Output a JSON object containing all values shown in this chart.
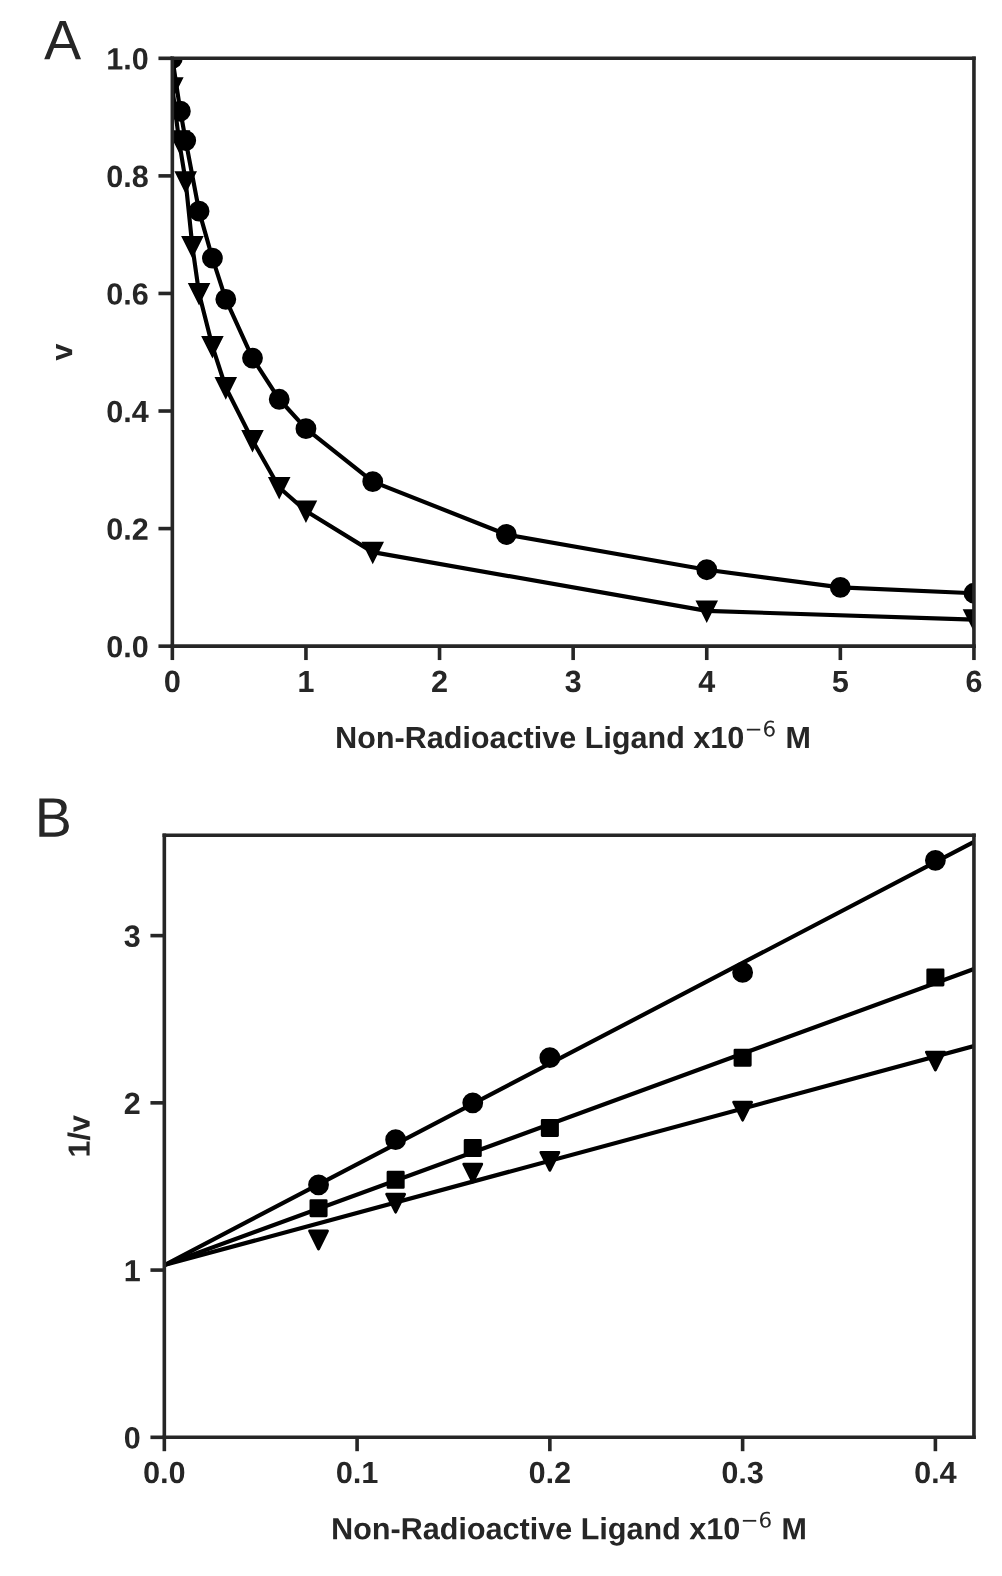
{
  "chart_data": [
    {
      "type": "line",
      "title": "A",
      "xlabel": "Non-Radioactive Ligand x10$^{−6}$ M",
      "ylabel": "v",
      "xlim": [
        0,
        6
      ],
      "xticks": [
        0,
        1,
        2,
        3,
        4,
        5,
        6
      ],
      "ylim": [
        0,
        1.0
      ],
      "yticks": [
        {
          "value": 0,
          "label": "0.0"
        },
        {
          "value": 0.2,
          "label": "0.2"
        },
        {
          "value": 0.4,
          "label": "0.4"
        },
        {
          "value": 0.6,
          "label": "0.6"
        },
        {
          "value": 0.8,
          "label": "0.8"
        },
        {
          "value": 1.0,
          "label": "1.0"
        }
      ],
      "grid": false,
      "legend": false,
      "series": [
        {
          "color": "#000000",
          "marker": "circle",
          "x": [
            0,
            0.06,
            0.1,
            0.2,
            0.3,
            0.4,
            0.6,
            0.8,
            1.0,
            1.5,
            2.5,
            4,
            5,
            6
          ],
          "values": [
            1.0,
            0.91,
            0.86,
            0.74,
            0.66,
            0.59,
            0.49,
            0.42,
            0.37,
            0.28,
            0.19,
            0.13,
            0.1,
            0.09
          ]
        },
        {
          "color": "#000000",
          "marker": "triangle",
          "x": [
            0,
            0.05,
            0.1,
            0.15,
            0.2,
            0.3,
            0.4,
            0.6,
            0.8,
            1.0,
            1.5,
            4,
            6
          ],
          "values": [
            0.95,
            0.86,
            0.79,
            0.68,
            0.6,
            0.51,
            0.44,
            0.35,
            0.27,
            0.23,
            0.16,
            0.06,
            0.045
          ]
        }
      ]
    },
    {
      "type": "scatter",
      "title": "B",
      "xlabel": "Non-Radioactive Ligand x10$^{−6}$ M",
      "ylabel": "1/v",
      "xlim": [
        0,
        0.42
      ],
      "xticks": [
        {
          "value": 0,
          "label": "0.0"
        },
        {
          "value": 0.1,
          "label": "0.1"
        },
        {
          "value": 0.2,
          "label": "0.2"
        },
        {
          "value": 0.3,
          "label": "0.3"
        },
        {
          "value": 0.4,
          "label": "0.4"
        }
      ],
      "ylim": [
        0,
        3.6
      ],
      "yticks": [
        0,
        1,
        2,
        3
      ],
      "grid": false,
      "legend": false,
      "series": [
        {
          "color": "#000000",
          "marker": "circle",
          "x": [
            0.08,
            0.12,
            0.16,
            0.2,
            0.3,
            0.4
          ],
          "values": [
            1.51,
            1.78,
            2.0,
            2.27,
            2.78,
            3.45
          ]
        },
        {
          "color": "#000000",
          "marker": "square",
          "x": [
            0.08,
            0.12,
            0.16,
            0.2,
            0.3,
            0.4
          ],
          "values": [
            1.37,
            1.54,
            1.73,
            1.85,
            2.27,
            2.75
          ]
        },
        {
          "color": "#000000",
          "marker": "triangle",
          "x": [
            0.08,
            0.12,
            0.16,
            0.2,
            0.3,
            0.4
          ],
          "values": [
            1.18,
            1.4,
            1.58,
            1.65,
            1.95,
            2.25
          ]
        },
        {
          "type": "line",
          "color": "#000000",
          "marker": "none",
          "x": [
            0,
            0.42
          ],
          "values": [
            1.03,
            3.56
          ]
        },
        {
          "type": "line",
          "color": "#000000",
          "marker": "none",
          "x": [
            0,
            0.42
          ],
          "values": [
            1.03,
            2.8
          ]
        },
        {
          "type": "line",
          "color": "#000000",
          "marker": "none",
          "x": [
            0,
            0.42
          ],
          "values": [
            1.03,
            2.34
          ]
        }
      ]
    }
  ]
}
